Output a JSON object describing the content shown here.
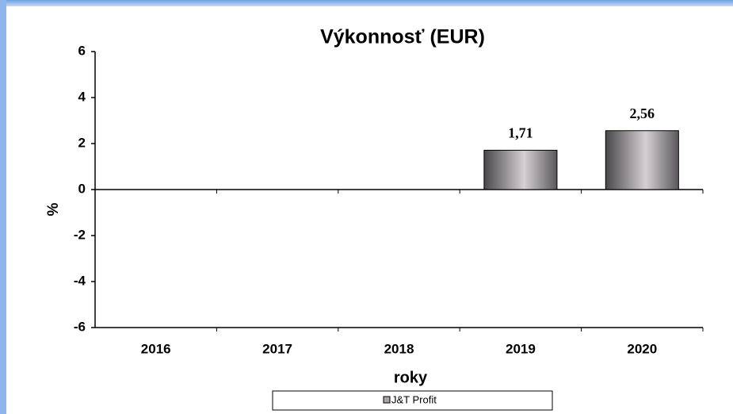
{
  "chart_data": {
    "type": "bar",
    "title": "Výkonnosť (EUR)",
    "categories": [
      "2016",
      "2017",
      "2018",
      "2019",
      "2020"
    ],
    "series": [
      {
        "name": "J&T Profit",
        "color": "#a8a4a8",
        "values": [
          null,
          null,
          null,
          1.71,
          2.56
        ],
        "value_labels": [
          null,
          null,
          null,
          "1,71",
          "2,56"
        ]
      }
    ],
    "ylim": [
      -6,
      6
    ],
    "yticks": [
      -6,
      -4,
      -2,
      0,
      2,
      4,
      6
    ],
    "y_label": "%",
    "x_label": "roky",
    "grid": false,
    "legend": "bottom"
  }
}
